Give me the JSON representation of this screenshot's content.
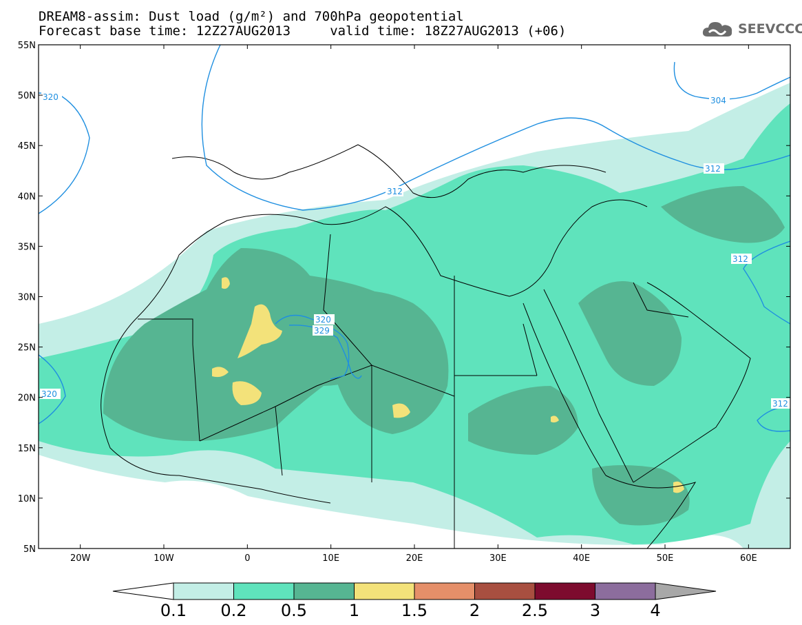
{
  "title": {
    "line1": "DREAM8-assim: Dust load (g/m²) and 700hPa geopotential",
    "line2": "Forecast base time: 12Z27AUG2013     valid time: 18Z27AUG2013 (+06)"
  },
  "logo": {
    "text": "SEEVCCC",
    "icon": "cloud-icon"
  },
  "map": {
    "lon_range": [
      -25,
      65
    ],
    "lat_range": [
      5,
      55
    ],
    "lat_labels": [
      "55N",
      "50N",
      "45N",
      "40N",
      "35N",
      "30N",
      "25N",
      "20N",
      "15N",
      "10N",
      "5N"
    ],
    "lon_labels": [
      "20W",
      "10W",
      "0",
      "10E",
      "20E",
      "30E",
      "40E",
      "50E",
      "60E"
    ],
    "contour_labels": [
      "320",
      "304",
      "312",
      "312",
      "312",
      "320",
      "320",
      "329",
      "312"
    ],
    "colors": {
      "contour": "#1f8fe0",
      "border": "#000000"
    }
  },
  "colorbar": {
    "levels": [
      "0.1",
      "0.2",
      "0.5",
      "1",
      "1.5",
      "2",
      "2.5",
      "3",
      "4"
    ],
    "colors": [
      "#ffffff",
      "#c3eee6",
      "#5fe3bc",
      "#56b592",
      "#f3e27a",
      "#e58f69",
      "#a84f40",
      "#7d0b2e",
      "#8c6d9d",
      "#a8a8a8"
    ]
  }
}
